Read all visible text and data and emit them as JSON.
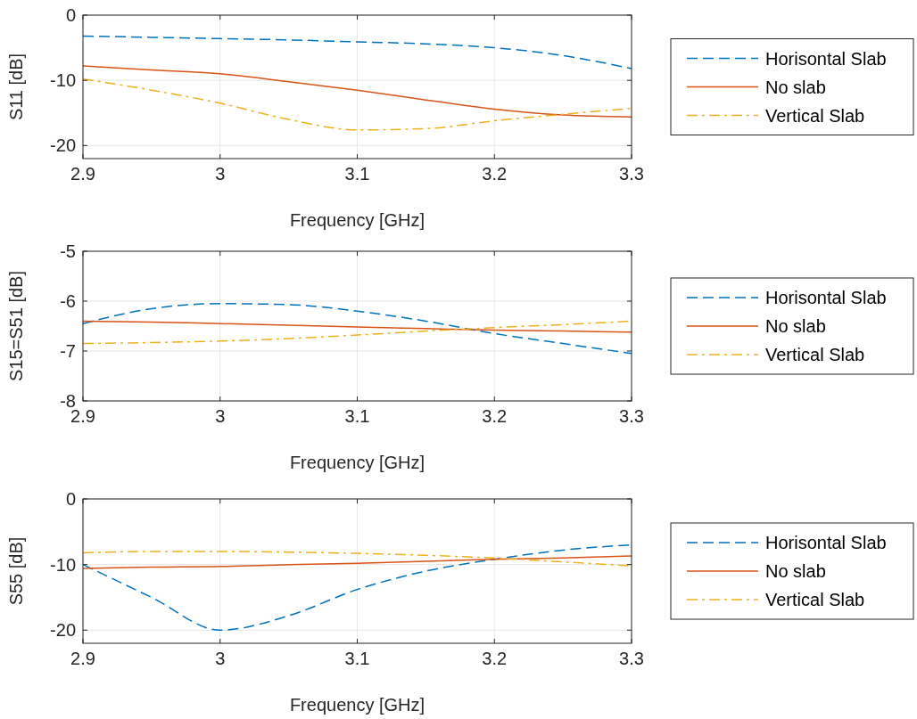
{
  "chart_data": [
    {
      "type": "line",
      "xlabel": "Frequency [GHz]",
      "ylabel": "S11 [dB]",
      "x": [
        2.9,
        2.95,
        3.0,
        3.05,
        3.1,
        3.15,
        3.2,
        3.25,
        3.3
      ],
      "xlim": [
        2.9,
        3.3
      ],
      "xticks": [
        2.9,
        3,
        3.1,
        3.2,
        3.3
      ],
      "ylim": [
        -22,
        0
      ],
      "yticks": [
        -20,
        -10,
        0
      ],
      "grid": true,
      "legend": "right",
      "series": [
        {
          "name": "Horisontal Slab",
          "color": "#0072bd",
          "line_style": "dashed",
          "values": [
            -3.2,
            -3.4,
            -3.6,
            -3.8,
            -4.1,
            -4.4,
            -5.0,
            -6.2,
            -8.2
          ]
        },
        {
          "name": "No slab",
          "color": "#d95319",
          "line_style": "solid",
          "values": [
            -7.8,
            -8.4,
            -9.0,
            -10.2,
            -11.5,
            -13.0,
            -14.4,
            -15.3,
            -15.6
          ]
        },
        {
          "name": "Vertical Slab",
          "color": "#edb120",
          "line_style": "dashdot",
          "values": [
            -9.8,
            -11.5,
            -13.5,
            -16.0,
            -17.6,
            -17.4,
            -16.2,
            -15.2,
            -14.3
          ]
        }
      ]
    },
    {
      "type": "line",
      "xlabel": "Frequency [GHz]",
      "ylabel": "S15=S51 [dB]",
      "x": [
        2.9,
        2.95,
        3.0,
        3.05,
        3.1,
        3.15,
        3.2,
        3.25,
        3.3
      ],
      "xlim": [
        2.9,
        3.3
      ],
      "xticks": [
        2.9,
        3,
        3.1,
        3.2,
        3.3
      ],
      "ylim": [
        -8,
        -5
      ],
      "yticks": [
        -8,
        -7,
        -6,
        -5
      ],
      "grid": true,
      "legend": "right",
      "series": [
        {
          "name": "Horisontal Slab",
          "color": "#0072bd",
          "line_style": "dashed",
          "values": [
            -6.45,
            -6.15,
            -6.05,
            -6.07,
            -6.2,
            -6.4,
            -6.65,
            -6.85,
            -7.05
          ]
        },
        {
          "name": "No slab",
          "color": "#d95319",
          "line_style": "solid",
          "values": [
            -6.4,
            -6.42,
            -6.45,
            -6.48,
            -6.52,
            -6.55,
            -6.58,
            -6.6,
            -6.62
          ]
        },
        {
          "name": "Vertical Slab",
          "color": "#edb120",
          "line_style": "dashdot",
          "values": [
            -6.85,
            -6.83,
            -6.8,
            -6.75,
            -6.68,
            -6.6,
            -6.53,
            -6.47,
            -6.4
          ]
        }
      ]
    },
    {
      "type": "line",
      "xlabel": "Frequency [GHz]",
      "ylabel": "S55 [dB]",
      "x": [
        2.9,
        2.95,
        3.0,
        3.05,
        3.1,
        3.15,
        3.2,
        3.25,
        3.3
      ],
      "xlim": [
        2.9,
        3.3
      ],
      "xticks": [
        2.9,
        3,
        3.1,
        3.2,
        3.3
      ],
      "ylim": [
        -22,
        0
      ],
      "yticks": [
        -20,
        -10,
        0
      ],
      "grid": true,
      "legend": "right",
      "series": [
        {
          "name": "Horisontal Slab",
          "color": "#0072bd",
          "line_style": "dashed",
          "values": [
            -10,
            -15,
            -20,
            -17.8,
            -13.8,
            -11,
            -9.2,
            -7.8,
            -7
          ]
        },
        {
          "name": "No slab",
          "color": "#d95319",
          "line_style": "solid",
          "values": [
            -10.6,
            -10.4,
            -10.3,
            -10.0,
            -9.8,
            -9.5,
            -9.2,
            -9.0,
            -8.7
          ]
        },
        {
          "name": "Vertical Slab",
          "color": "#edb120",
          "line_style": "dashdot",
          "values": [
            -8.2,
            -8.0,
            -8.0,
            -8.1,
            -8.3,
            -8.6,
            -9.0,
            -9.6,
            -10.2
          ]
        }
      ]
    }
  ]
}
